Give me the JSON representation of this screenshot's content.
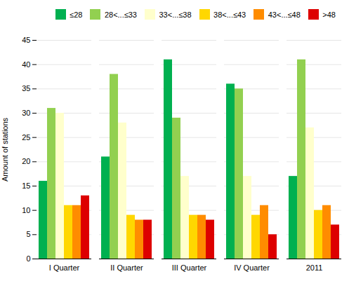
{
  "chart_data": {
    "type": "bar",
    "categories": [
      "I Quarter",
      "II Quarter",
      "III Quarter",
      "IV Quarter",
      "2011"
    ],
    "series": [
      {
        "name": "≤28",
        "color": "#00b050",
        "values": [
          16,
          21,
          41,
          36,
          17
        ]
      },
      {
        "name": "28<...≤33",
        "color": "#92d050",
        "values": [
          31,
          38,
          29,
          35,
          41
        ]
      },
      {
        "name": "33<...≤38",
        "color": "#ffffcc",
        "values": [
          30,
          28,
          17,
          17,
          27
        ]
      },
      {
        "name": "38<...≤43",
        "color": "#ffd700",
        "values": [
          11,
          9,
          9,
          9,
          10
        ]
      },
      {
        "name": "43<...≤48",
        "color": "#ff8c00",
        "values": [
          11,
          8,
          9,
          11,
          11
        ]
      },
      {
        "name": ">48",
        "color": "#dd0000",
        "values": [
          13,
          8,
          8,
          5,
          7
        ]
      }
    ],
    "ylabel": "Amount of stations",
    "ylim": [
      0,
      45
    ],
    "yticks": [
      0,
      5,
      10,
      15,
      20,
      25,
      30,
      35,
      40,
      45
    ],
    "grid": true,
    "legend": "upper right"
  }
}
